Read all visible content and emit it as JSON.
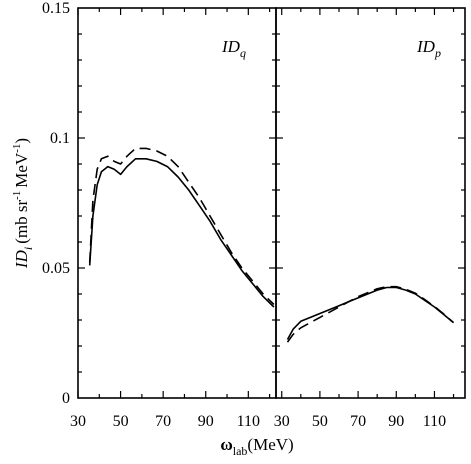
{
  "chart_data": [
    {
      "type": "line",
      "panel_label": "ID",
      "panel_label_sub": "q",
      "xlim": [
        30,
        123
      ],
      "ylim": [
        0,
        0.15
      ],
      "xticks": [
        30,
        50,
        70,
        90,
        110
      ],
      "yticks": [
        0,
        0.05,
        0.1,
        0.15
      ],
      "ytick_labels": [
        "0",
        "0.05",
        "0.1",
        "0.15"
      ],
      "series": [
        {
          "style": "solid",
          "x": [
            35.5,
            37,
            39,
            41,
            44,
            47,
            50,
            53,
            57,
            62,
            67,
            72,
            77,
            82,
            87,
            92,
            97,
            102,
            107,
            112,
            117,
            122
          ],
          "y": [
            0.051,
            0.07,
            0.082,
            0.087,
            0.089,
            0.088,
            0.086,
            0.089,
            0.092,
            0.092,
            0.091,
            0.089,
            0.085,
            0.08,
            0.074,
            0.068,
            0.061,
            0.055,
            0.049,
            0.044,
            0.039,
            0.035
          ]
        },
        {
          "style": "dashed",
          "x": [
            35.5,
            37,
            39,
            41,
            44,
            47,
            50,
            53,
            57,
            62,
            67,
            72,
            77,
            82,
            87,
            92,
            97,
            102,
            107,
            112,
            117,
            122
          ],
          "y": [
            0.052,
            0.076,
            0.088,
            0.092,
            0.093,
            0.091,
            0.09,
            0.093,
            0.096,
            0.096,
            0.095,
            0.093,
            0.089,
            0.083,
            0.077,
            0.07,
            0.063,
            0.056,
            0.05,
            0.045,
            0.04,
            0.036
          ]
        }
      ]
    },
    {
      "type": "line",
      "panel_label": "ID",
      "panel_label_sub": "p",
      "xlim": [
        27,
        126
      ],
      "ylim": [
        0,
        0.15
      ],
      "xticks": [
        30,
        50,
        70,
        90,
        110
      ],
      "series": [
        {
          "style": "solid",
          "x": [
            33,
            36,
            40,
            45,
            50,
            55,
            60,
            65,
            70,
            75,
            80,
            85,
            90,
            95,
            100,
            105,
            110,
            115,
            120
          ],
          "y": [
            0.0225,
            0.0265,
            0.0295,
            0.031,
            0.0325,
            0.034,
            0.0355,
            0.037,
            0.0385,
            0.04,
            0.0415,
            0.0425,
            0.0425,
            0.0415,
            0.04,
            0.0375,
            0.035,
            0.032,
            0.029
          ]
        },
        {
          "style": "dashed",
          "x": [
            33,
            36,
            40,
            45,
            50,
            55,
            60,
            65,
            70,
            75,
            80,
            85,
            90,
            95,
            100,
            105,
            110,
            115,
            120
          ],
          "y": [
            0.0215,
            0.0245,
            0.027,
            0.029,
            0.031,
            0.033,
            0.035,
            0.037,
            0.039,
            0.0405,
            0.042,
            0.0428,
            0.0428,
            0.0418,
            0.0403,
            0.0378,
            0.0352,
            0.0322,
            0.029
          ]
        }
      ]
    }
  ],
  "axes": {
    "ylabel_main": "ID",
    "ylabel_sub": "i",
    "ylabel_units": "(mb sr",
    "ylabel_exp1": "-1",
    "ylabel_units2": "MeV",
    "ylabel_exp2": "-1",
    "ylabel_close": ")",
    "xlabel_main": "ω",
    "xlabel_sub": "lab",
    "xlabel_units": "(MeV)"
  }
}
